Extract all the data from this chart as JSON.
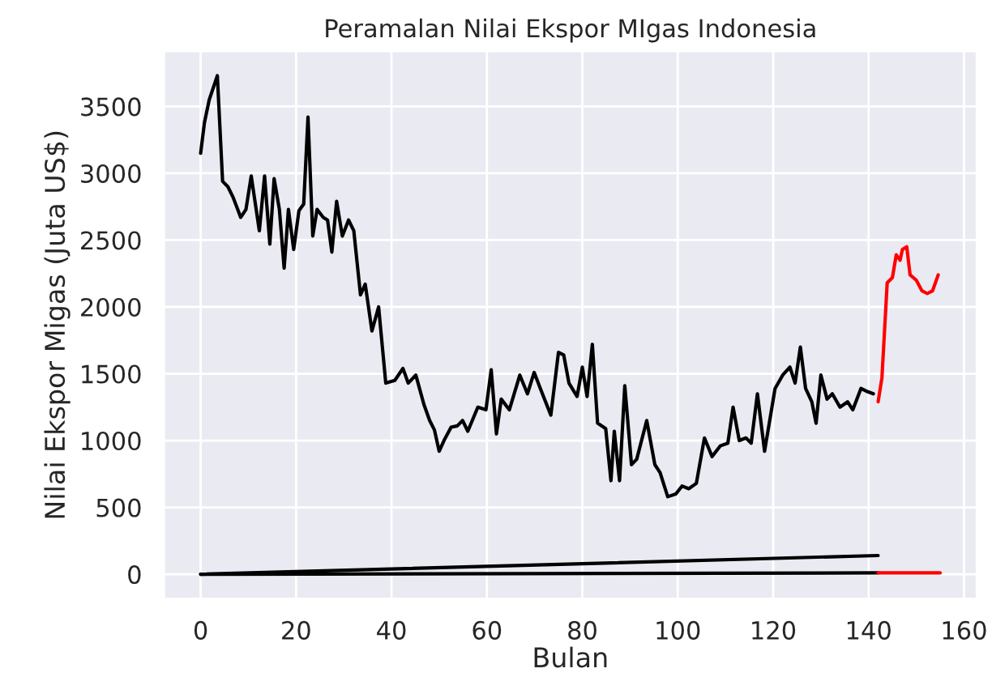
{
  "chart_data": {
    "type": "line",
    "title": "Peramalan Nilai Ekspor MIgas Indonesia",
    "xlabel": "Bulan",
    "ylabel": "Nilai Ekspor Migas (Juta US$)",
    "xlim": [
      -7.75,
      162.75
    ],
    "ylim": [
      -186.5,
      3916.5
    ],
    "xticks": [
      0,
      20,
      40,
      60,
      80,
      100,
      120,
      140,
      160
    ],
    "yticks": [
      0,
      500,
      1000,
      1500,
      2000,
      2500,
      3000,
      3500
    ],
    "grid": true,
    "legend": false,
    "marker": "none",
    "line_style": "solid",
    "series": [
      {
        "color": "#000000",
        "x": [
          0,
          0.8,
          1.8,
          3.5,
          4.6,
          5.7,
          6.8,
          8.4,
          9.5,
          10.6,
          12.3,
          13.4,
          14.5,
          15.4,
          16.5,
          17.5,
          18.4,
          19.5,
          20.6,
          21.6,
          22.5,
          23.5,
          24.4,
          25.7,
          26.6,
          27.5,
          28.5,
          29.7,
          31,
          32.1,
          33.5,
          34.5,
          35.9,
          37.3,
          38.8,
          40.7,
          42.4,
          43.5,
          45.1,
          46.8,
          48,
          49,
          50,
          51,
          52.5,
          53.8,
          54.9,
          56,
          58.1,
          59.8,
          60.9,
          62,
          63,
          64.7,
          66.9,
          68.5,
          69.9,
          71.2,
          73.4,
          75,
          76.1,
          77.2,
          78.9,
          80,
          81,
          82.1,
          83.2,
          84.9,
          86,
          86.7,
          87.8,
          88.9,
          90.3,
          91.4,
          93.5,
          95.2,
          96.3,
          97.9,
          99.6,
          100.9,
          102.3,
          103.9,
          105.6,
          107.2,
          108.9,
          110.5,
          111.6,
          112.9,
          114.3,
          115.4,
          116.7,
          118.2,
          120.4,
          122,
          123.5,
          124.6,
          125.7,
          126.8,
          128.1,
          129,
          130,
          131.3,
          132.4,
          134,
          135.6,
          136.7,
          138.4,
          139.5,
          141
        ],
        "values": [
          3150,
          3380,
          3550,
          3730,
          2940,
          2900,
          2820,
          2670,
          2730,
          2980,
          2570,
          2980,
          2470,
          2960,
          2730,
          2290,
          2730,
          2430,
          2720,
          2770,
          3420,
          2530,
          2730,
          2670,
          2650,
          2410,
          2790,
          2530,
          2650,
          2570,
          2090,
          2170,
          1820,
          2000,
          1430,
          1450,
          1540,
          1430,
          1490,
          1270,
          1150,
          1080,
          920,
          1000,
          1100,
          1110,
          1150,
          1070,
          1250,
          1230,
          1530,
          1050,
          1310,
          1230,
          1490,
          1350,
          1510,
          1390,
          1190,
          1660,
          1640,
          1430,
          1330,
          1550,
          1330,
          1720,
          1130,
          1090,
          700,
          1070,
          700,
          1410,
          820,
          860,
          1150,
          820,
          760,
          580,
          600,
          660,
          640,
          680,
          1020,
          880,
          960,
          980,
          1250,
          1000,
          1020,
          980,
          1350,
          920,
          1390,
          1490,
          1550,
          1430,
          1700,
          1390,
          1290,
          1130,
          1490,
          1310,
          1350,
          1250,
          1290,
          1230,
          1390,
          1370,
          1350
        ]
      },
      {
        "color": "#ff0000",
        "x": [
          142,
          142.8,
          143.9,
          145,
          145.8,
          146.6,
          147.1,
          148,
          148.7,
          150,
          151.2,
          152.3,
          153.4,
          154.6
        ],
        "values": [
          1290,
          1470,
          2180,
          2220,
          2390,
          2350,
          2430,
          2450,
          2240,
          2200,
          2120,
          2100,
          2120,
          2240
        ]
      },
      {
        "color": "#000000",
        "x": [
          0,
          142
        ],
        "values": [
          0,
          140
        ]
      },
      {
        "color": "#000000",
        "x": [
          0,
          142
        ],
        "values": [
          0,
          10
        ]
      },
      {
        "color": "#ff0000",
        "x": [
          142,
          155
        ],
        "values": [
          10,
          10
        ]
      }
    ]
  }
}
